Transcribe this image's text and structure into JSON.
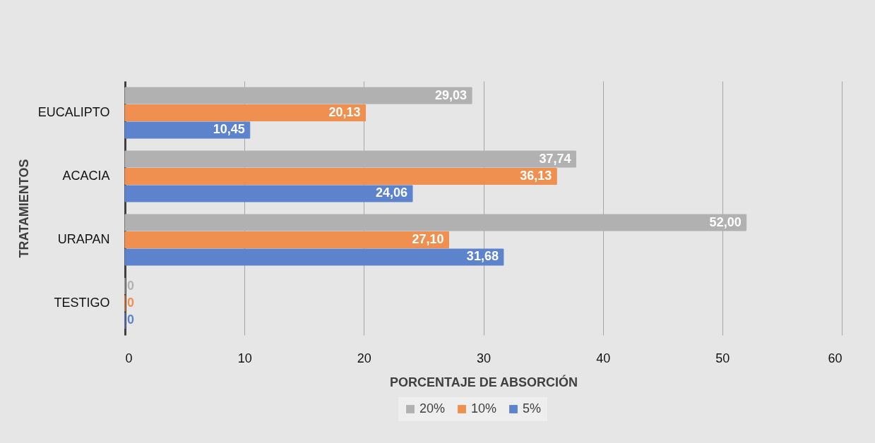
{
  "chart_data": {
    "type": "bar",
    "orientation": "horizontal",
    "xlabel": "PORCENTAJE  DE ABSORCIÓN",
    "ylabel": "TRATAMIENTOS",
    "categories": [
      "EUCALIPTO",
      "ACACIA",
      "URAPAN",
      "TESTIGO"
    ],
    "series": [
      {
        "name": "20%",
        "color": "#b1b1b1",
        "values": [
          29.03,
          37.74,
          52.0,
          0
        ],
        "value_labels": [
          "29,03",
          "37,74",
          "52,00",
          "0"
        ]
      },
      {
        "name": "10%",
        "color": "#ef8f50",
        "values": [
          20.13,
          36.13,
          27.1,
          0
        ],
        "value_labels": [
          "20,13",
          "36,13",
          "27,10",
          "0"
        ]
      },
      {
        "name": "5%",
        "color": "#5d83cc",
        "values": [
          10.45,
          24.06,
          31.68,
          0
        ],
        "value_labels": [
          "10,45",
          "24,06",
          "31,68",
          "0"
        ]
      }
    ],
    "xlim": [
      0,
      60
    ],
    "xticks": [
      0,
      10,
      20,
      30,
      40,
      50,
      60
    ],
    "grid": "x",
    "legend": "bottom"
  }
}
